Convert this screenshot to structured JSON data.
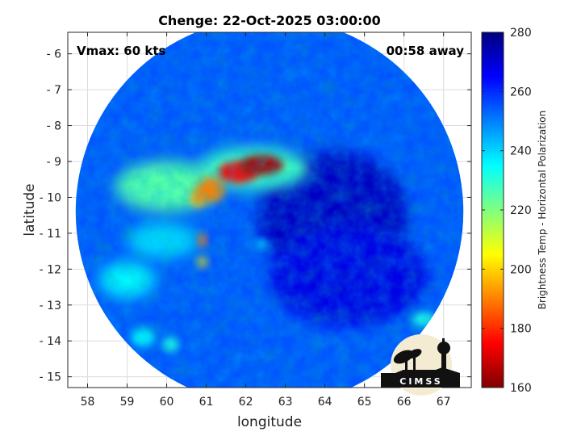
{
  "chart_data": {
    "type": "heatmap",
    "title": "Chenge: 22-Oct-2025 03:00:00",
    "xlabel": "longitude",
    "ylabel": "latitude",
    "xlim": [
      57.5,
      67.7
    ],
    "ylim": [
      -15.3,
      -5.4
    ],
    "x_ticks": [
      58,
      59,
      60,
      61,
      62,
      63,
      64,
      65,
      66,
      67
    ],
    "y_ticks": [
      -6,
      -7,
      -8,
      -9,
      -10,
      -11,
      -12,
      -13,
      -14,
      -15
    ],
    "grid": true,
    "swath": {
      "center": [
        62.6,
        -10.4
      ],
      "radius_deg": 4.9
    },
    "features": [
      {
        "lon": 62.4,
        "lat": -9.1,
        "value": 165,
        "rx": 0.55,
        "ry": 0.28
      },
      {
        "lon": 61.8,
        "lat": -9.3,
        "value": 175,
        "rx": 0.5,
        "ry": 0.3
      },
      {
        "lon": 61.1,
        "lat": -9.8,
        "value": 190,
        "rx": 0.35,
        "ry": 0.35
      },
      {
        "lon": 60.8,
        "lat": -10.0,
        "value": 195,
        "rx": 0.2,
        "ry": 0.25
      },
      {
        "lon": 60.9,
        "lat": -11.2,
        "value": 188,
        "rx": 0.1,
        "ry": 0.2
      },
      {
        "lon": 60.9,
        "lat": -11.8,
        "value": 200,
        "rx": 0.12,
        "ry": 0.15
      },
      {
        "lon": 60.0,
        "lat": -9.7,
        "value": 225,
        "rx": 1.3,
        "ry": 0.7
      },
      {
        "lon": 62.2,
        "lat": -9.2,
        "value": 228,
        "rx": 1.4,
        "ry": 0.6
      },
      {
        "lon": 59.9,
        "lat": -11.2,
        "value": 240,
        "rx": 0.9,
        "ry": 0.5
      },
      {
        "lon": 59.0,
        "lat": -12.3,
        "value": 236,
        "rx": 0.7,
        "ry": 0.5
      },
      {
        "lon": 62.4,
        "lat": -11.3,
        "value": 238,
        "rx": 0.15,
        "ry": 0.12
      },
      {
        "lon": 66.5,
        "lat": -13.4,
        "value": 232,
        "rx": 0.3,
        "ry": 0.2
      },
      {
        "lon": 59.4,
        "lat": -13.9,
        "value": 236,
        "rx": 0.3,
        "ry": 0.25
      },
      {
        "lon": 60.1,
        "lat": -14.1,
        "value": 232,
        "rx": 0.2,
        "ry": 0.2
      },
      {
        "lon": 64.2,
        "lat": -10.5,
        "value": 272,
        "rx": 1.9,
        "ry": 1.8
      },
      {
        "lon": 64.6,
        "lat": -12.2,
        "value": 268,
        "rx": 2.0,
        "ry": 1.4
      }
    ],
    "background_value": 255,
    "colorbar": {
      "label": "Brightness Temp - Horizontal Polarization",
      "min": 160,
      "max": 280,
      "ticks": [
        280,
        260,
        240,
        220,
        200,
        180,
        160
      ],
      "colormap": "jet",
      "colors": [
        "#800000",
        "#ff0000",
        "#ff8000",
        "#ffff00",
        "#80ff80",
        "#00ffff",
        "#0080ff",
        "#0000ff",
        "#000080"
      ]
    },
    "annotations": {
      "vmax": "Vmax: 60 kts",
      "away": "00:58 away"
    },
    "logo": "CIMSS"
  }
}
